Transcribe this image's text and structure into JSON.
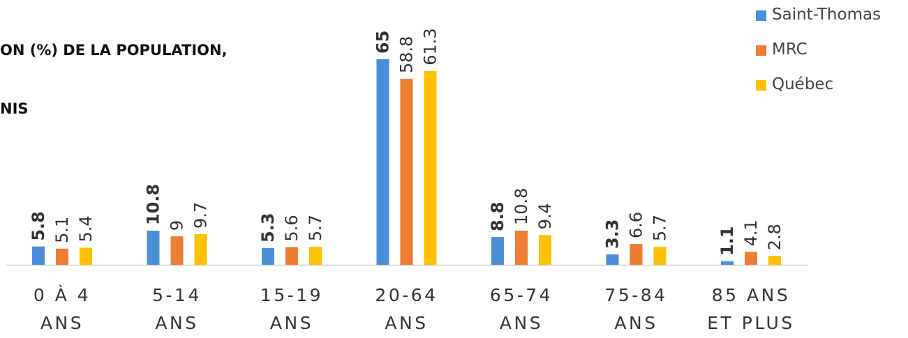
{
  "chart_data": {
    "type": "bar",
    "title_lines": [
      "ON (%) DE LA POPULATION,",
      "NIS"
    ],
    "categories": [
      [
        "0 À 4",
        "ANS"
      ],
      [
        "5-14",
        "ANS"
      ],
      [
        "15-19",
        "ANS"
      ],
      [
        "20-64",
        "ANS"
      ],
      [
        "65-74",
        "ANS"
      ],
      [
        "75-84",
        "ANS"
      ],
      [
        "85 ANS",
        "ET PLUS"
      ]
    ],
    "series": [
      {
        "name": "Saint-Thomas",
        "color": "#4a90d9",
        "values": [
          5.8,
          10.8,
          5.3,
          65,
          8.8,
          3.3,
          1.1
        ],
        "labels": [
          "5.8",
          "10.8",
          "5.3",
          "65",
          "8.8",
          "3.3",
          "1.1"
        ]
      },
      {
        "name": "MRC",
        "color": "#ed7d31",
        "values": [
          5.1,
          9,
          5.6,
          58.8,
          10.8,
          6.6,
          4.1
        ],
        "labels": [
          "5.1",
          "9",
          "5.6",
          "58.8",
          "10.8",
          "6.6",
          "4.1"
        ]
      },
      {
        "name": "Québec",
        "color": "#ffc000",
        "values": [
          5.4,
          9.7,
          5.7,
          61.3,
          9.4,
          5.7,
          2.8
        ],
        "labels": [
          "5.4",
          "9.7",
          "5.7",
          "61.3",
          "9.4",
          "5.7",
          "2.8"
        ]
      }
    ],
    "ylim": [
      0,
      65
    ],
    "grid": false,
    "legend_position": "top-right",
    "data_labels": "rotated-vertical",
    "bold_series": "Saint-Thomas"
  }
}
